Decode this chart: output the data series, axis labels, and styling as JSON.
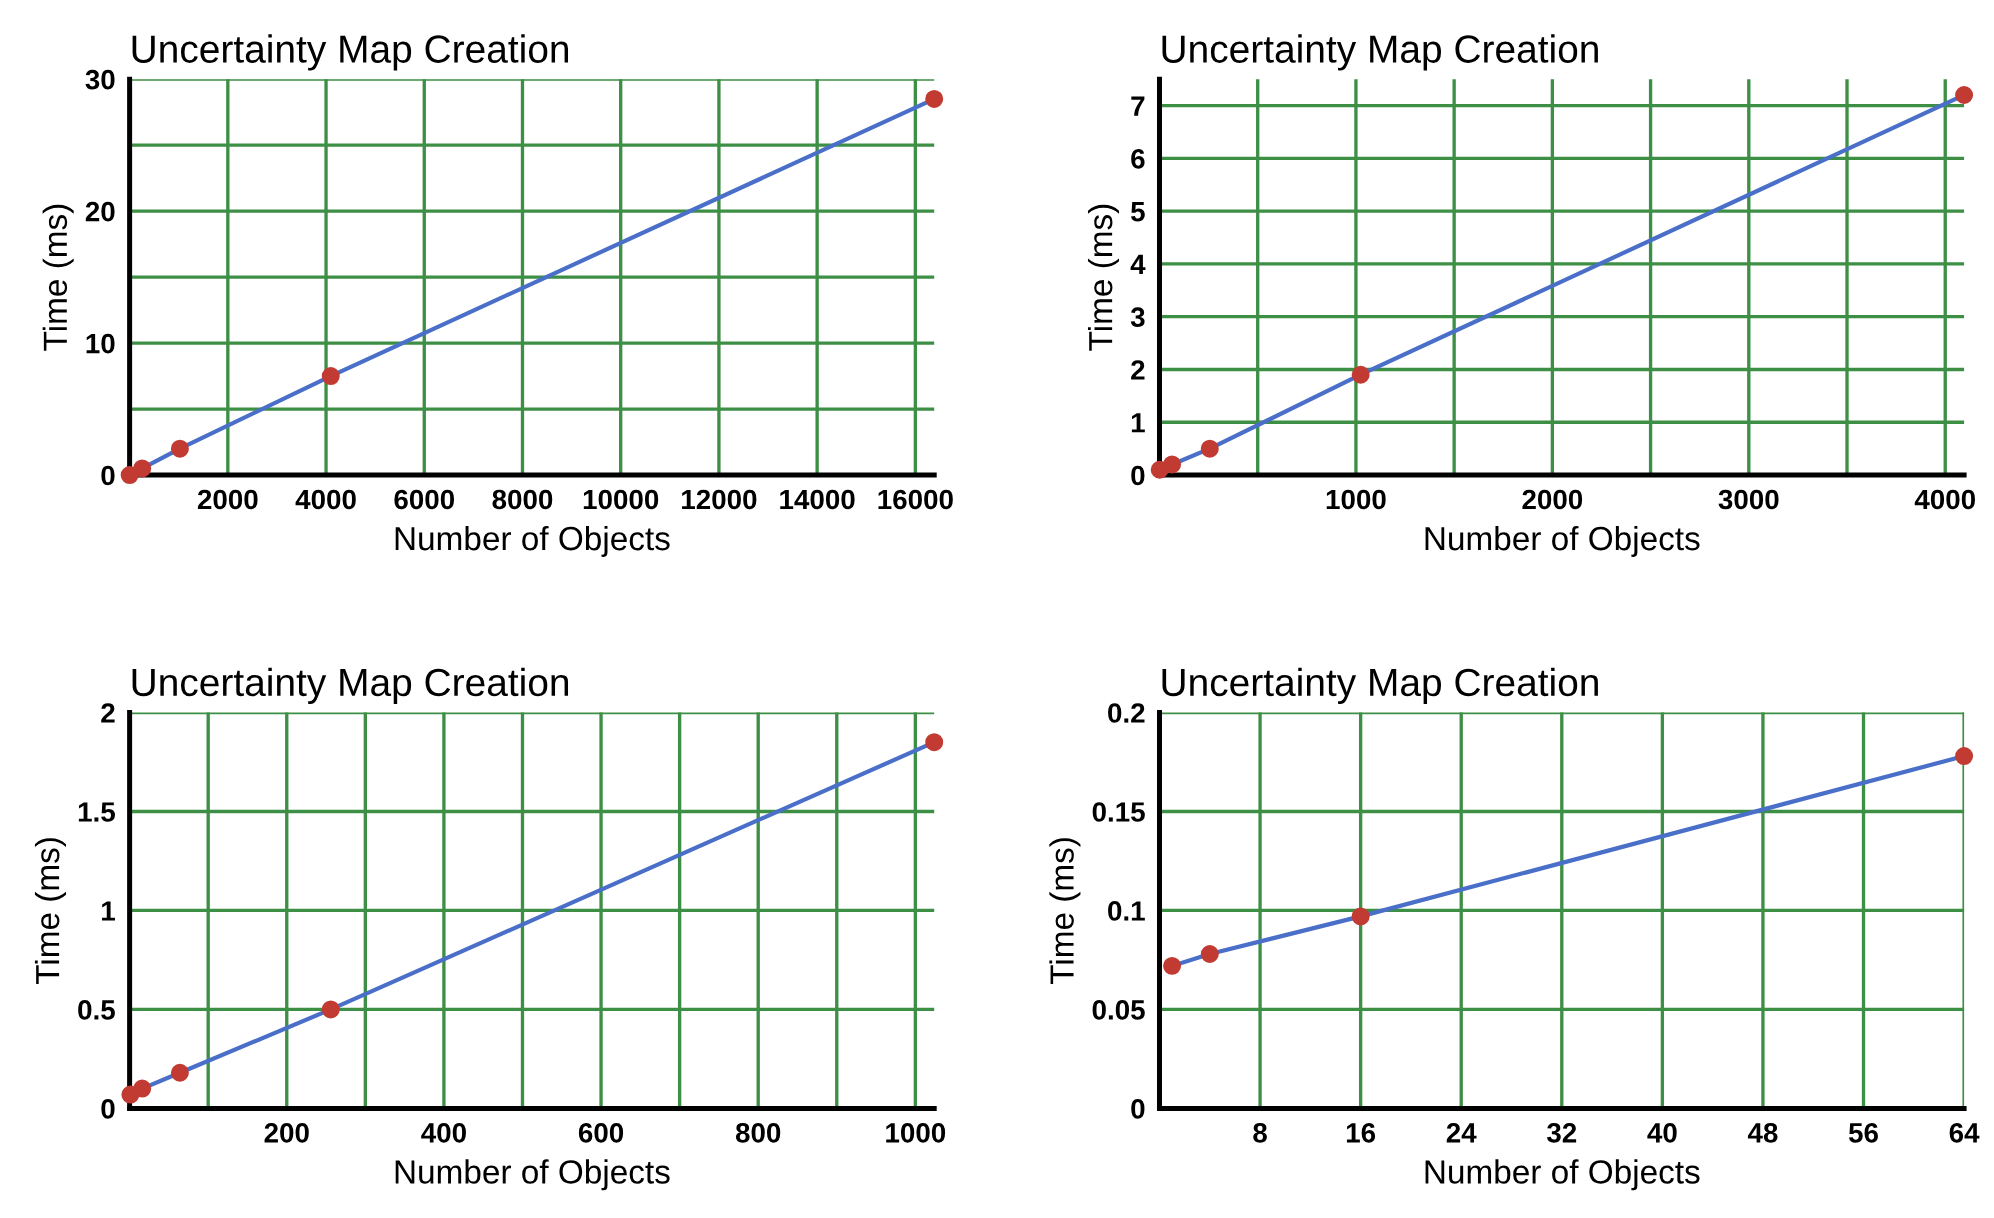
{
  "chart_data": [
    {
      "type": "line",
      "title": "Uncertainty Map Creation",
      "xlabel": "Number of Objects",
      "ylabel": "Time (ms)",
      "x": [
        1,
        256,
        1024,
        4096,
        16384
      ],
      "series": [
        {
          "color": "#4a6fc9",
          "marker": "none",
          "values": [
            0,
            0.5,
            2,
            7.5,
            28.5
          ]
        },
        {
          "type": "scatter",
          "color": "#c23b32",
          "marker": "circle",
          "values": [
            0,
            0.5,
            2,
            7.5,
            28.5
          ]
        }
      ],
      "xlim": [
        0,
        16384
      ],
      "xticks": [
        2000,
        4000,
        6000,
        8000,
        10000,
        12000,
        14000,
        16000
      ],
      "ylim": [
        0,
        30
      ],
      "yticks": [
        0,
        {
          "value": 5,
          "label": null
        },
        10,
        {
          "value": 15,
          "label": null
        },
        20,
        {
          "value": 25,
          "label": null
        },
        30
      ],
      "grid": true
    },
    {
      "type": "line",
      "title": "Uncertainty Map Creation",
      "xlabel": "Number of Objects",
      "ylabel": "Time (ms)",
      "x": [
        1,
        64,
        256,
        1024,
        4096
      ],
      "series": [
        {
          "color": "#4a6fc9",
          "marker": "none",
          "values": [
            0.1,
            0.2,
            0.5,
            1.9,
            7.2
          ]
        },
        {
          "type": "scatter",
          "color": "#c23b32",
          "marker": "circle",
          "values": [
            0.1,
            0.2,
            0.5,
            1.9,
            7.2
          ]
        }
      ],
      "xlim": [
        0,
        4096
      ],
      "xticks": [
        {
          "value": 500,
          "label": null
        },
        1000,
        {
          "value": 1500,
          "label": null
        },
        2000,
        {
          "value": 2500,
          "label": null
        },
        3000,
        {
          "value": 3500,
          "label": null
        },
        4000
      ],
      "ylim": [
        0,
        7.5
      ],
      "yticks": [
        0,
        1,
        2,
        3,
        4,
        5,
        6,
        7
      ],
      "grid": true
    },
    {
      "type": "line",
      "title": "Uncertainty Map Creation",
      "xlabel": "Number of Objects",
      "ylabel": "Time (ms)",
      "x": [
        1,
        16,
        64,
        256,
        1024
      ],
      "series": [
        {
          "color": "#4a6fc9",
          "marker": "none",
          "values": [
            0.07,
            0.1,
            0.18,
            0.5,
            1.85
          ]
        },
        {
          "type": "scatter",
          "color": "#c23b32",
          "marker": "circle",
          "values": [
            0.07,
            0.1,
            0.18,
            0.5,
            1.85
          ]
        }
      ],
      "xlim": [
        0,
        1024
      ],
      "xticks": [
        {
          "value": 100,
          "label": null
        },
        200,
        {
          "value": 300,
          "label": null
        },
        400,
        {
          "value": 500,
          "label": null
        },
        600,
        {
          "value": 700,
          "label": null
        },
        800,
        {
          "value": 900,
          "label": null
        },
        1000
      ],
      "ylim": [
        0,
        2
      ],
      "yticks": [
        0,
        0.5,
        1,
        1.5,
        2
      ],
      "grid": true
    },
    {
      "type": "line",
      "title": "Uncertainty Map Creation",
      "xlabel": "Number of Objects",
      "ylabel": "Time (ms)",
      "x": [
        1,
        4,
        16,
        64
      ],
      "series": [
        {
          "color": "#4a6fc9",
          "marker": "none",
          "values": [
            0.072,
            0.078,
            0.097,
            0.178
          ]
        },
        {
          "type": "scatter",
          "color": "#c23b32",
          "marker": "circle",
          "values": [
            0.072,
            0.078,
            0.097,
            0.178
          ]
        }
      ],
      "xlim": [
        0,
        64
      ],
      "xticks": [
        8,
        16,
        24,
        32,
        40,
        48,
        56,
        64
      ],
      "ylim": [
        0,
        0.2
      ],
      "yticks": [
        0,
        0.05,
        0.1,
        0.15,
        0.2
      ],
      "grid": true
    }
  ]
}
